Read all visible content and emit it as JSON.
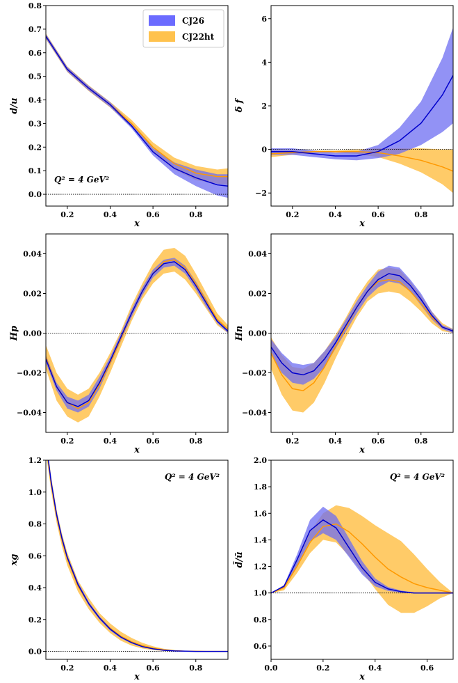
{
  "legend": [
    {
      "name": "CJ26",
      "color": "#6b6bff"
    },
    {
      "name": "CJ22ht",
      "color": "#ffc24d"
    }
  ],
  "colors": {
    "cj26_band": "#6e6ef2",
    "cj26_line": "#0000cc",
    "cj22_band": "#ffc24d",
    "cj22_line": "#ff9900"
  },
  "chart_data": [
    {
      "id": "du",
      "type": "line",
      "ylabel": "d/u",
      "xlabel": "x",
      "xlim": [
        0.1,
        0.95
      ],
      "ylim": [
        -0.05,
        0.8
      ],
      "xticks": [
        0.2,
        0.4,
        0.6,
        0.8
      ],
      "yticks": [
        0.0,
        0.1,
        0.2,
        0.3,
        0.4,
        0.5,
        0.6,
        0.7,
        0.8
      ],
      "ytick_labels": [
        "0.0",
        "0.1",
        "0.2",
        "0.3",
        "0.4",
        "0.5",
        "0.6",
        "0.7",
        "0.8"
      ],
      "xtick_labels": [
        "0.2",
        "0.4",
        "0.6",
        "0.8"
      ],
      "zero_line": 0,
      "legend": true,
      "annotation": "Q² = 4 GeV²",
      "annotation_pos": "bottom-left",
      "series": [
        {
          "name": "CJ26",
          "x": [
            0.1,
            0.2,
            0.3,
            0.4,
            0.5,
            0.6,
            0.7,
            0.8,
            0.9,
            0.95
          ],
          "y": [
            0.67,
            0.53,
            0.45,
            0.38,
            0.29,
            0.18,
            0.11,
            0.07,
            0.04,
            0.035
          ],
          "band": [
            0.01,
            0.01,
            0.01,
            0.01,
            0.01,
            0.015,
            0.025,
            0.035,
            0.045,
            0.05
          ]
        },
        {
          "name": "CJ22ht",
          "x": [
            0.1,
            0.2,
            0.3,
            0.4,
            0.5,
            0.6,
            0.7,
            0.8,
            0.9,
            0.95
          ],
          "y": [
            0.67,
            0.53,
            0.45,
            0.38,
            0.3,
            0.2,
            0.13,
            0.09,
            0.075,
            0.075
          ],
          "band": [
            0.012,
            0.012,
            0.012,
            0.012,
            0.015,
            0.02,
            0.025,
            0.03,
            0.03,
            0.035
          ]
        }
      ]
    },
    {
      "id": "deltaf",
      "type": "line",
      "ylabel": "δ f",
      "xlabel": "x",
      "xlim": [
        0.1,
        0.95
      ],
      "ylim": [
        -2.6,
        6.6
      ],
      "xticks": [
        0.2,
        0.4,
        0.6,
        0.8
      ],
      "yticks": [
        -2,
        0,
        2,
        4,
        6
      ],
      "ytick_labels": [
        "−2",
        "0",
        "2",
        "4",
        "6"
      ],
      "xtick_labels": [
        "0.2",
        "0.4",
        "0.6",
        "0.8"
      ],
      "zero_line": 0,
      "series": [
        {
          "name": "CJ26",
          "x": [
            0.1,
            0.2,
            0.3,
            0.4,
            0.5,
            0.6,
            0.7,
            0.8,
            0.9,
            0.95
          ],
          "y": [
            -0.1,
            -0.1,
            -0.2,
            -0.3,
            -0.3,
            -0.1,
            0.4,
            1.2,
            2.5,
            3.4
          ],
          "band": [
            0.15,
            0.15,
            0.15,
            0.15,
            0.2,
            0.3,
            0.6,
            1.0,
            1.7,
            2.2
          ]
        },
        {
          "name": "CJ22ht",
          "x": [
            0.1,
            0.2,
            0.3,
            0.4,
            0.5,
            0.6,
            0.7,
            0.8,
            0.9,
            0.95
          ],
          "y": [
            -0.2,
            -0.15,
            -0.1,
            -0.1,
            -0.1,
            -0.15,
            -0.3,
            -0.5,
            -0.8,
            -1.0
          ],
          "band": [
            0.15,
            0.1,
            0.05,
            0.05,
            0.1,
            0.2,
            0.35,
            0.55,
            0.8,
            1.0
          ]
        }
      ]
    },
    {
      "id": "hp",
      "type": "line",
      "ylabel": "Hp",
      "xlabel": "x",
      "xlim": [
        0.1,
        0.95
      ],
      "ylim": [
        -0.05,
        0.05
      ],
      "xticks": [
        0.2,
        0.4,
        0.6,
        0.8
      ],
      "yticks": [
        -0.04,
        -0.02,
        0.0,
        0.02,
        0.04
      ],
      "ytick_labels": [
        "−0.04",
        "−0.02",
        "0.00",
        "0.02",
        "0.04"
      ],
      "xtick_labels": [
        "0.2",
        "0.4",
        "0.6",
        "0.8"
      ],
      "zero_line": 0,
      "series": [
        {
          "name": "CJ26",
          "x": [
            0.1,
            0.15,
            0.2,
            0.25,
            0.3,
            0.35,
            0.4,
            0.45,
            0.5,
            0.55,
            0.6,
            0.65,
            0.7,
            0.75,
            0.8,
            0.85,
            0.9,
            0.95
          ],
          "y": [
            -0.013,
            -0.027,
            -0.035,
            -0.037,
            -0.034,
            -0.025,
            -0.014,
            -0.002,
            0.01,
            0.021,
            0.03,
            0.035,
            0.036,
            0.032,
            0.024,
            0.015,
            0.006,
            0.001
          ],
          "band": [
            0.002,
            0.002,
            0.003,
            0.003,
            0.003,
            0.003,
            0.002,
            0.002,
            0.002,
            0.002,
            0.002,
            0.002,
            0.002,
            0.002,
            0.002,
            0.002,
            0.001,
            0.001
          ]
        },
        {
          "name": "CJ22ht",
          "x": [
            0.1,
            0.15,
            0.2,
            0.25,
            0.3,
            0.35,
            0.4,
            0.45,
            0.5,
            0.55,
            0.6,
            0.65,
            0.7,
            0.75,
            0.8,
            0.85,
            0.9,
            0.95
          ],
          "y": [
            -0.012,
            -0.027,
            -0.035,
            -0.038,
            -0.035,
            -0.026,
            -0.015,
            -0.003,
            0.01,
            0.021,
            0.03,
            0.036,
            0.037,
            0.033,
            0.025,
            0.016,
            0.007,
            0.002
          ],
          "band": [
            0.006,
            0.007,
            0.007,
            0.007,
            0.007,
            0.006,
            0.005,
            0.004,
            0.004,
            0.004,
            0.005,
            0.006,
            0.006,
            0.006,
            0.005,
            0.004,
            0.003,
            0.002
          ]
        }
      ]
    },
    {
      "id": "hn",
      "type": "line",
      "ylabel": "Hn",
      "xlabel": "x",
      "xlim": [
        0.1,
        0.95
      ],
      "ylim": [
        -0.05,
        0.05
      ],
      "xticks": [
        0.2,
        0.4,
        0.6,
        0.8
      ],
      "yticks": [
        -0.04,
        -0.02,
        0.0,
        0.02,
        0.04
      ],
      "ytick_labels": [
        "−0.04",
        "−0.02",
        "0.00",
        "0.02",
        "0.04"
      ],
      "xtick_labels": [
        "0.2",
        "0.4",
        "0.6",
        "0.8"
      ],
      "zero_line": 0,
      "series": [
        {
          "name": "CJ26",
          "x": [
            0.1,
            0.15,
            0.2,
            0.25,
            0.3,
            0.35,
            0.4,
            0.45,
            0.5,
            0.55,
            0.6,
            0.65,
            0.7,
            0.75,
            0.8,
            0.85,
            0.9,
            0.95
          ],
          "y": [
            -0.007,
            -0.015,
            -0.02,
            -0.021,
            -0.019,
            -0.013,
            -0.005,
            0.004,
            0.013,
            0.021,
            0.027,
            0.03,
            0.029,
            0.024,
            0.017,
            0.009,
            0.003,
            0.001
          ],
          "band": [
            0.004,
            0.005,
            0.005,
            0.005,
            0.004,
            0.004,
            0.003,
            0.003,
            0.003,
            0.003,
            0.004,
            0.004,
            0.004,
            0.003,
            0.003,
            0.002,
            0.001,
            0.001
          ]
        },
        {
          "name": "CJ22ht",
          "x": [
            0.1,
            0.15,
            0.2,
            0.25,
            0.3,
            0.35,
            0.4,
            0.45,
            0.5,
            0.55,
            0.6,
            0.65,
            0.7,
            0.75,
            0.8,
            0.85,
            0.9,
            0.95
          ],
          "y": [
            -0.01,
            -0.021,
            -0.028,
            -0.029,
            -0.025,
            -0.017,
            -0.007,
            0.003,
            0.013,
            0.021,
            0.026,
            0.027,
            0.026,
            0.021,
            0.015,
            0.008,
            0.003,
            0.001
          ],
          "band": [
            0.008,
            0.01,
            0.011,
            0.011,
            0.01,
            0.008,
            0.006,
            0.005,
            0.005,
            0.005,
            0.006,
            0.006,
            0.006,
            0.005,
            0.004,
            0.003,
            0.002,
            0.001
          ]
        }
      ]
    },
    {
      "id": "xg",
      "type": "line",
      "ylabel": "xg",
      "xlabel": "x",
      "xlim": [
        0.1,
        0.95
      ],
      "ylim": [
        -0.05,
        1.2
      ],
      "xticks": [
        0.2,
        0.4,
        0.6,
        0.8
      ],
      "yticks": [
        0.0,
        0.2,
        0.4,
        0.6,
        0.8,
        1.0,
        1.2
      ],
      "ytick_labels": [
        "0.0",
        "0.2",
        "0.4",
        "0.6",
        "0.8",
        "1.0",
        "1.2"
      ],
      "xtick_labels": [
        "0.2",
        "0.4",
        "0.6",
        "0.8"
      ],
      "zero_line": 0,
      "annotation": "Q² = 4 GeV²",
      "annotation_pos": "top-right",
      "series": [
        {
          "name": "CJ26",
          "x": [
            0.1,
            0.125,
            0.15,
            0.175,
            0.2,
            0.25,
            0.3,
            0.35,
            0.4,
            0.45,
            0.5,
            0.55,
            0.6,
            0.65,
            0.7,
            0.75,
            0.8,
            0.85,
            0.9,
            0.95
          ],
          "y": [
            1.32,
            1.06,
            0.86,
            0.71,
            0.59,
            0.42,
            0.3,
            0.21,
            0.14,
            0.09,
            0.055,
            0.03,
            0.016,
            0.007,
            0.003,
            0.001,
            0.0,
            0.0,
            0.0,
            0.0
          ],
          "band": [
            0.03,
            0.025,
            0.02,
            0.02,
            0.015,
            0.015,
            0.012,
            0.01,
            0.01,
            0.008,
            0.006,
            0.005,
            0.003,
            0.002,
            0.001,
            0.001,
            0.0,
            0.0,
            0.0,
            0.0
          ]
        },
        {
          "name": "CJ22ht",
          "x": [
            0.1,
            0.125,
            0.15,
            0.175,
            0.2,
            0.25,
            0.3,
            0.35,
            0.4,
            0.45,
            0.5,
            0.55,
            0.6,
            0.65,
            0.7,
            0.75,
            0.8,
            0.85,
            0.9,
            0.95
          ],
          "y": [
            1.3,
            1.05,
            0.85,
            0.7,
            0.58,
            0.41,
            0.3,
            0.21,
            0.145,
            0.095,
            0.06,
            0.036,
            0.02,
            0.01,
            0.004,
            0.0015,
            0.0005,
            0.0,
            0.0,
            0.0
          ],
          "band": [
            0.05,
            0.045,
            0.04,
            0.04,
            0.04,
            0.035,
            0.035,
            0.03,
            0.03,
            0.028,
            0.024,
            0.018,
            0.012,
            0.007,
            0.004,
            0.002,
            0.001,
            0.0,
            0.0,
            0.0
          ]
        }
      ]
    },
    {
      "id": "dbarubar",
      "type": "line",
      "ylabel": "d̄/ū",
      "xlabel": "x",
      "xlim": [
        0.0,
        0.7
      ],
      "ylim": [
        0.5,
        2.0
      ],
      "xticks": [
        0.0,
        0.2,
        0.4,
        0.6
      ],
      "yticks": [
        0.6,
        0.8,
        1.0,
        1.2,
        1.4,
        1.6,
        1.8,
        2.0
      ],
      "ytick_labels": [
        "0.6",
        "0.8",
        "1.0",
        "1.2",
        "1.4",
        "1.6",
        "1.8",
        "2.0"
      ],
      "xtick_labels": [
        "0.0",
        "0.2",
        "0.4",
        "0.6"
      ],
      "zero_line": 1.0,
      "annotation": "Q² = 4 GeV²",
      "annotation_pos": "top-right",
      "series": [
        {
          "name": "CJ26",
          "x": [
            0.0,
            0.05,
            0.1,
            0.15,
            0.2,
            0.25,
            0.3,
            0.35,
            0.4,
            0.45,
            0.5,
            0.55,
            0.6,
            0.65,
            0.7
          ],
          "y": [
            1.0,
            1.05,
            1.25,
            1.47,
            1.55,
            1.49,
            1.34,
            1.19,
            1.08,
            1.03,
            1.01,
            1.0,
            1.0,
            1.0,
            1.0
          ],
          "band": [
            0.0,
            0.01,
            0.04,
            0.08,
            0.1,
            0.09,
            0.07,
            0.05,
            0.03,
            0.015,
            0.008,
            0.004,
            0.002,
            0.001,
            0.0
          ]
        },
        {
          "name": "CJ22ht",
          "x": [
            0.0,
            0.05,
            0.1,
            0.15,
            0.2,
            0.25,
            0.3,
            0.35,
            0.4,
            0.45,
            0.5,
            0.55,
            0.6,
            0.65,
            0.7
          ],
          "y": [
            1.0,
            1.04,
            1.2,
            1.38,
            1.5,
            1.52,
            1.46,
            1.37,
            1.27,
            1.18,
            1.12,
            1.07,
            1.04,
            1.02,
            1.0
          ],
          "band": [
            0.0,
            0.02,
            0.05,
            0.08,
            0.1,
            0.14,
            0.18,
            0.21,
            0.24,
            0.27,
            0.27,
            0.22,
            0.14,
            0.06,
            0.0
          ]
        }
      ]
    }
  ]
}
